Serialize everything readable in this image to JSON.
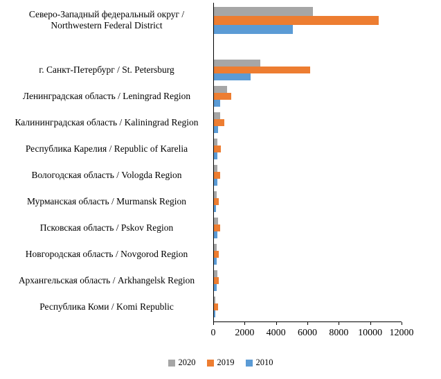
{
  "chart_data": {
    "type": "bar",
    "orientation": "horizontal",
    "title": "",
    "xlabel": "",
    "ylabel": "",
    "xlim": [
      0,
      12000
    ],
    "x_ticks": [
      "0",
      "2000",
      "4000",
      "6000",
      "8000",
      "10000",
      "12000"
    ],
    "grid": false,
    "legend_position": "bottom",
    "categories": [
      "Северо-Западный федеральный округ / Northwestern Federal District",
      "г. Санкт-Петербург / St. Petersburg",
      "Ленинградская область / Leningrad Region",
      "Калининградская область / Kaliningrad Region",
      "Республика Карелия / Republic of Karelia",
      "Вологодская область / Vologda Region",
      "Мурманская область / Murmansk Region",
      "Псковская область / Pskov Region",
      "Новгородская область / Novgorod Region",
      "Архангельская область / Arkhangelsk Region",
      "Республика Коми / Komi Republic"
    ],
    "series": [
      {
        "name": "2020",
        "color": "#a6a6a6",
        "values": [
          6400,
          3000,
          900,
          450,
          280,
          280,
          220,
          310,
          220,
          270,
          130
        ]
      },
      {
        "name": "2019",
        "color": "#ed7d31",
        "values": [
          10600,
          6200,
          1150,
          700,
          500,
          450,
          360,
          450,
          370,
          360,
          310
        ]
      },
      {
        "name": "2010",
        "color": "#5b9bd5",
        "values": [
          5100,
          2400,
          450,
          300,
          270,
          280,
          180,
          280,
          230,
          230,
          140
        ]
      }
    ]
  },
  "colors": {
    "axis": "#000000",
    "background": "#ffffff"
  }
}
